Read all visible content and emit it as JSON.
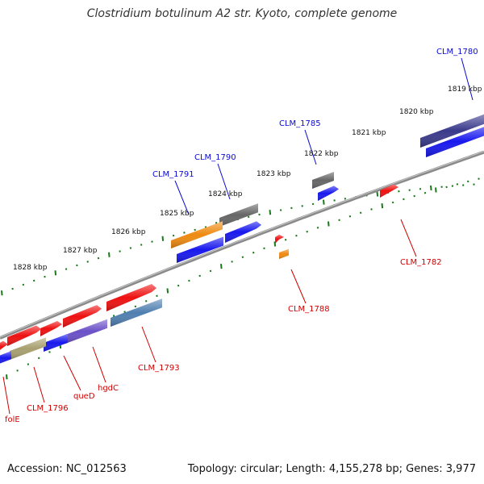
{
  "title": "Clostridium botulinum A2 str. Kyoto, complete genome",
  "footer": {
    "accession": "Accession: NC_012563",
    "summary": "Topology: circular; Length: 4,155,278 bp; Genes: 3,977"
  },
  "colors": {
    "backbone": "#8a8a8a",
    "tick": "#1a7a1a",
    "label_forward": "#0a0ad0",
    "label_reverse": "#d00000",
    "leader": "#0a0ad0",
    "leader_reverse": "#d00000"
  },
  "scale_labels": [
    "1819 kbp",
    "1820 kbp",
    "1821 kbp",
    "1822 kbp",
    "1823 kbp",
    "1824 kbp",
    "1825 kbp",
    "1826 kbp",
    "1827 kbp",
    "1828 kbp"
  ],
  "gene_labels": [
    {
      "text": "CLM_1780",
      "strand": "forward"
    },
    {
      "text": "CLM_1785",
      "strand": "forward"
    },
    {
      "text": "CLM_1790",
      "strand": "forward"
    },
    {
      "text": "CLM_1791",
      "strand": "forward"
    },
    {
      "text": "CLM_1782",
      "strand": "reverse"
    },
    {
      "text": "CLM_1788",
      "strand": "reverse"
    },
    {
      "text": "CLM_1793",
      "strand": "reverse"
    },
    {
      "text": "hgdC",
      "strand": "reverse"
    },
    {
      "text": "queD",
      "strand": "reverse"
    },
    {
      "text": "CLM_1796",
      "strand": "reverse"
    },
    {
      "text": "folE",
      "strand": "reverse"
    }
  ],
  "features": [
    {
      "name": "feature-1780",
      "color": "#3a3a8c"
    },
    {
      "name": "feature-1780-cds",
      "color": "#1818ee"
    },
    {
      "name": "feature-1785",
      "color": "#666666"
    },
    {
      "name": "feature-1785-cds",
      "color": "#1818ee"
    },
    {
      "name": "feature-1782",
      "color": "#ee1111"
    },
    {
      "name": "feature-1790",
      "color": "#666666"
    },
    {
      "name": "feature-1790-cds",
      "color": "#1818ee"
    },
    {
      "name": "feature-1791",
      "color": "#ee8a10"
    },
    {
      "name": "feature-1791-cds",
      "color": "#1818ee"
    },
    {
      "name": "feature-1788a",
      "color": "#ee1111"
    },
    {
      "name": "feature-1788b",
      "color": "#ee8a10"
    },
    {
      "name": "feature-1793-top",
      "color": "#ee1111"
    },
    {
      "name": "feature-1793",
      "color": "#4f7fb0"
    },
    {
      "name": "feature-hgdc-top",
      "color": "#ee1111"
    },
    {
      "name": "feature-hgdc",
      "color": "#6a50c8"
    },
    {
      "name": "feature-qued-top",
      "color": "#ee1111"
    },
    {
      "name": "feature-qued",
      "color": "#1818ee"
    },
    {
      "name": "feature-1796-top",
      "color": "#ee1111"
    },
    {
      "name": "feature-1796",
      "color": "#a8a070"
    },
    {
      "name": "feature-fole-top",
      "color": "#ee1111"
    },
    {
      "name": "feature-fole",
      "color": "#1818ee"
    }
  ]
}
